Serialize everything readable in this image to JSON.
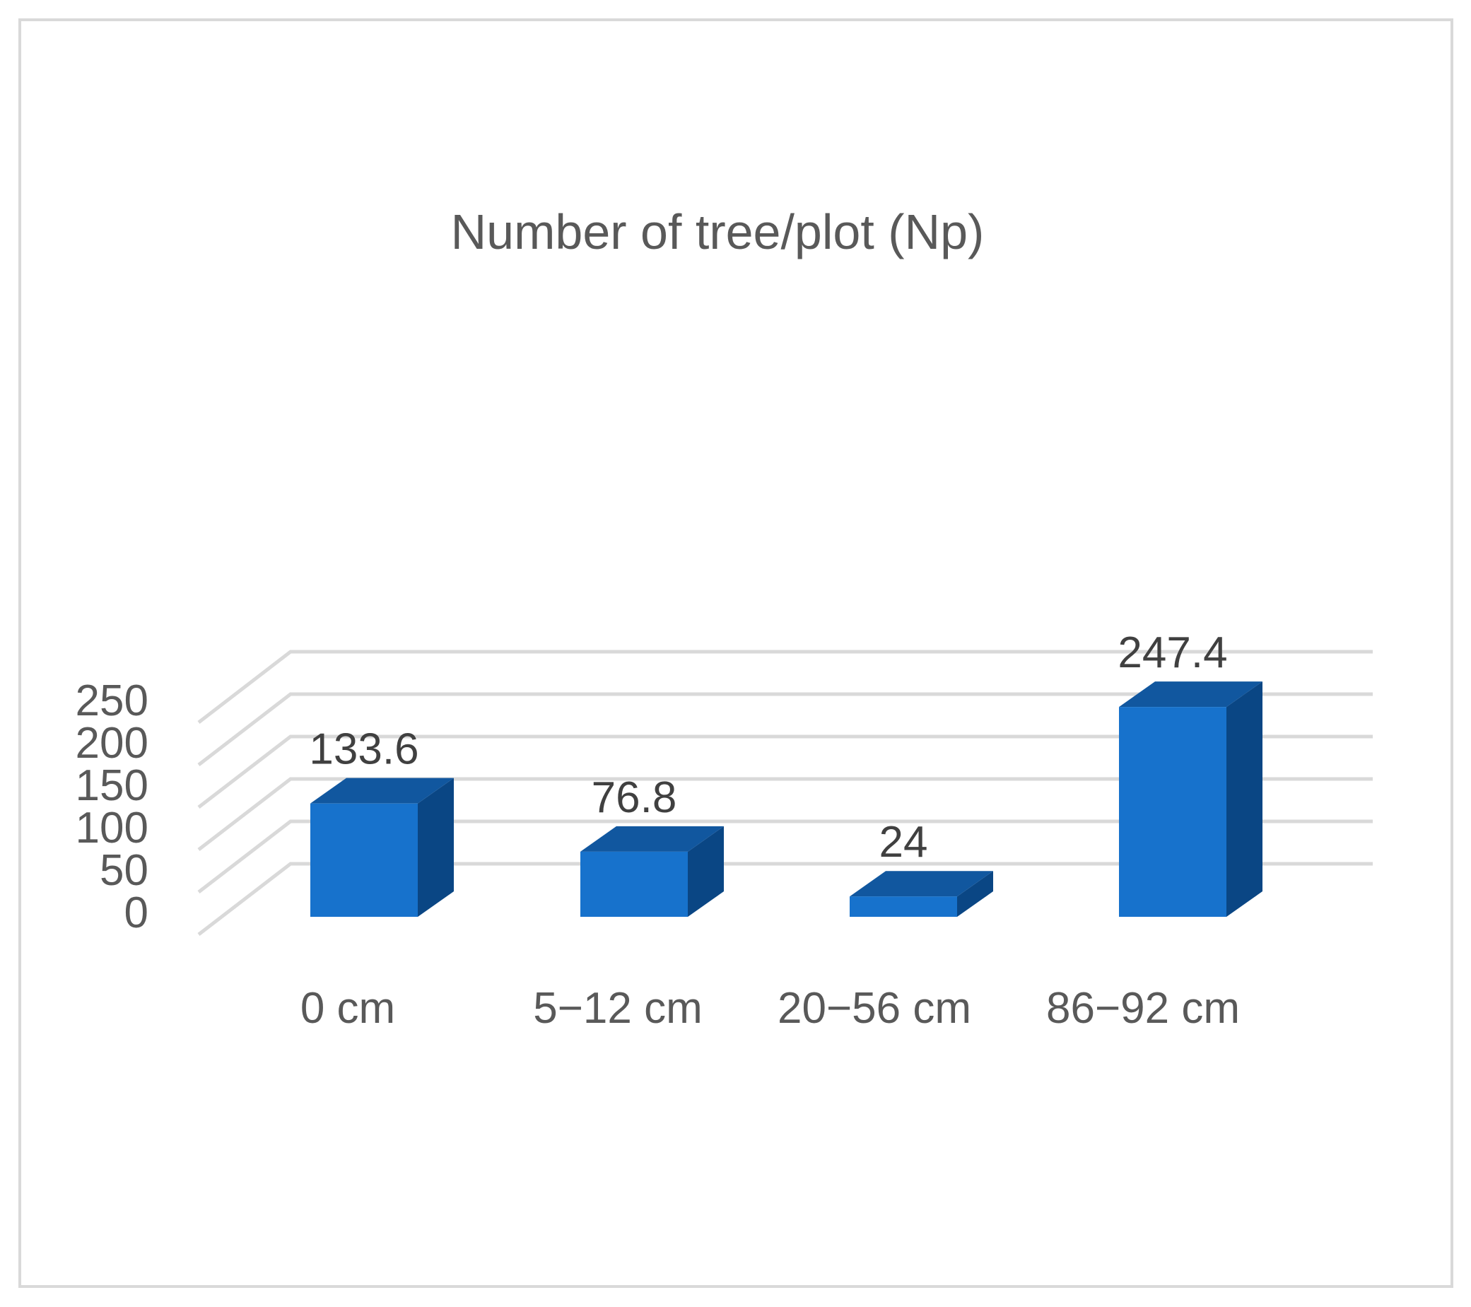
{
  "chart_data": {
    "type": "bar",
    "title": "Number of tree/plot (Np)",
    "categories": [
      "0 cm",
      "5−12 cm",
      "20−56 cm",
      "86−92 cm"
    ],
    "values": [
      133.6,
      76.8,
      24,
      247.4
    ],
    "data_labels": [
      "133.6",
      "76.8",
      "24",
      "247.4"
    ],
    "yticks": [
      "0",
      "50",
      "100",
      "150",
      "200",
      "250"
    ],
    "ylim": [
      0,
      250
    ],
    "xlabel": "",
    "ylabel": "",
    "grid": true,
    "legend": "none",
    "style": "3d-column",
    "colors": {
      "bar_front": "#1772cc",
      "bar_side": "#0a4684",
      "bar_top": "#11579f",
      "grid": "#d9d9d9",
      "text": "#595959",
      "data_label": "#404040",
      "frame": "#d9d9d9"
    }
  }
}
